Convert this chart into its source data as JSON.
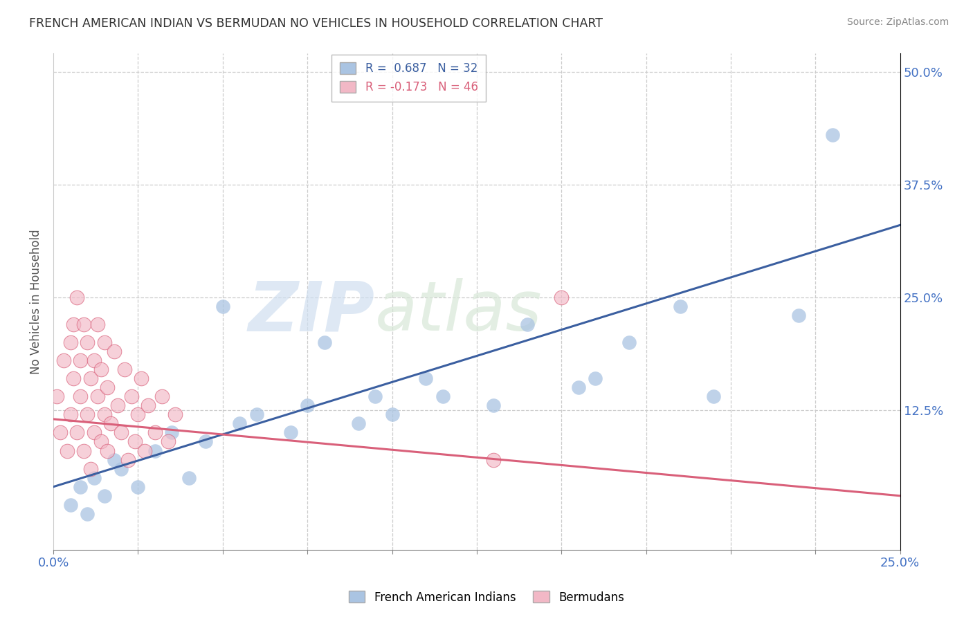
{
  "title": "FRENCH AMERICAN INDIAN VS BERMUDAN NO VEHICLES IN HOUSEHOLD CORRELATION CHART",
  "source": "Source: ZipAtlas.com",
  "ylabel": "No Vehicles in Household",
  "legend_r1": "R =  0.687   N = 32",
  "legend_r2": "R = -0.173   N = 46",
  "blue_color": "#aac4e2",
  "blue_line_color": "#3b5fa0",
  "pink_color": "#f2b8c6",
  "pink_line_color": "#d9607a",
  "legend_label1": "French American Indians",
  "legend_label2": "Bermudans",
  "xmin": 0.0,
  "xmax": 0.25,
  "ymin": -0.03,
  "ymax": 0.52,
  "ytick_values": [
    0.0,
    0.125,
    0.25,
    0.375,
    0.5
  ],
  "ytick_labels": [
    "",
    "12.5%",
    "25.0%",
    "37.5%",
    "50.0%"
  ],
  "blue_x": [
    0.005,
    0.008,
    0.01,
    0.012,
    0.015,
    0.018,
    0.02,
    0.025,
    0.03,
    0.035,
    0.04,
    0.045,
    0.05,
    0.055,
    0.06,
    0.07,
    0.075,
    0.08,
    0.09,
    0.095,
    0.1,
    0.11,
    0.115,
    0.13,
    0.14,
    0.155,
    0.16,
    0.17,
    0.185,
    0.195,
    0.22,
    0.23
  ],
  "blue_y": [
    0.02,
    0.04,
    0.01,
    0.05,
    0.03,
    0.07,
    0.06,
    0.04,
    0.08,
    0.1,
    0.05,
    0.09,
    0.24,
    0.11,
    0.12,
    0.1,
    0.13,
    0.2,
    0.11,
    0.14,
    0.12,
    0.16,
    0.14,
    0.13,
    0.22,
    0.15,
    0.16,
    0.2,
    0.24,
    0.14,
    0.23,
    0.43
  ],
  "pink_x": [
    0.001,
    0.002,
    0.003,
    0.004,
    0.005,
    0.005,
    0.006,
    0.006,
    0.007,
    0.007,
    0.008,
    0.008,
    0.009,
    0.009,
    0.01,
    0.01,
    0.011,
    0.011,
    0.012,
    0.012,
    0.013,
    0.013,
    0.014,
    0.014,
    0.015,
    0.015,
    0.016,
    0.016,
    0.017,
    0.018,
    0.019,
    0.02,
    0.021,
    0.022,
    0.023,
    0.024,
    0.025,
    0.026,
    0.027,
    0.028,
    0.03,
    0.032,
    0.034,
    0.036,
    0.13,
    0.15
  ],
  "pink_y": [
    0.14,
    0.1,
    0.18,
    0.08,
    0.2,
    0.12,
    0.22,
    0.16,
    0.25,
    0.1,
    0.18,
    0.14,
    0.22,
    0.08,
    0.2,
    0.12,
    0.16,
    0.06,
    0.18,
    0.1,
    0.14,
    0.22,
    0.09,
    0.17,
    0.12,
    0.2,
    0.08,
    0.15,
    0.11,
    0.19,
    0.13,
    0.1,
    0.17,
    0.07,
    0.14,
    0.09,
    0.12,
    0.16,
    0.08,
    0.13,
    0.1,
    0.14,
    0.09,
    0.12,
    0.07,
    0.25
  ],
  "blue_line_x0": 0.0,
  "blue_line_x1": 0.25,
  "blue_line_y0": 0.04,
  "blue_line_y1": 0.33,
  "pink_line_x0": 0.0,
  "pink_line_x1": 0.25,
  "pink_line_y0": 0.115,
  "pink_line_y1": 0.03
}
